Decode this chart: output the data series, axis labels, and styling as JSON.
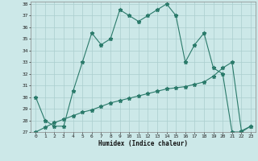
{
  "xlabel": "Humidex (Indice chaleur)",
  "x": [
    0,
    1,
    2,
    3,
    4,
    5,
    6,
    7,
    8,
    9,
    10,
    11,
    12,
    13,
    14,
    15,
    16,
    17,
    18,
    19,
    20,
    21,
    22,
    23
  ],
  "y_line1": [
    30,
    28,
    27.5,
    27.5,
    30.5,
    33,
    35.5,
    34.5,
    35,
    37.5,
    37,
    36.5,
    37,
    37.5,
    38,
    37,
    33,
    34.5,
    35.5,
    32.5,
    32,
    27,
    27,
    27.5
  ],
  "y_line2": [
    27,
    27.4,
    27.8,
    28.1,
    28.4,
    28.7,
    28.9,
    29.2,
    29.5,
    29.7,
    29.9,
    30.1,
    30.3,
    30.5,
    30.7,
    30.8,
    30.9,
    31.1,
    31.3,
    31.8,
    32.5,
    33.0,
    27.1,
    27.5
  ],
  "ylim": [
    27,
    38
  ],
  "xlim": [
    -0.5,
    23.5
  ],
  "yticks": [
    27,
    28,
    29,
    30,
    31,
    32,
    33,
    34,
    35,
    36,
    37,
    38
  ],
  "xticks": [
    0,
    1,
    2,
    3,
    4,
    5,
    6,
    7,
    8,
    9,
    10,
    11,
    12,
    13,
    14,
    15,
    16,
    17,
    18,
    19,
    20,
    21,
    22,
    23
  ],
  "line_color": "#2a7a6a",
  "bg_color": "#cce8e8",
  "grid_color": "#aacece",
  "marker": "*",
  "marker_size": 3.5,
  "linewidth": 0.8
}
